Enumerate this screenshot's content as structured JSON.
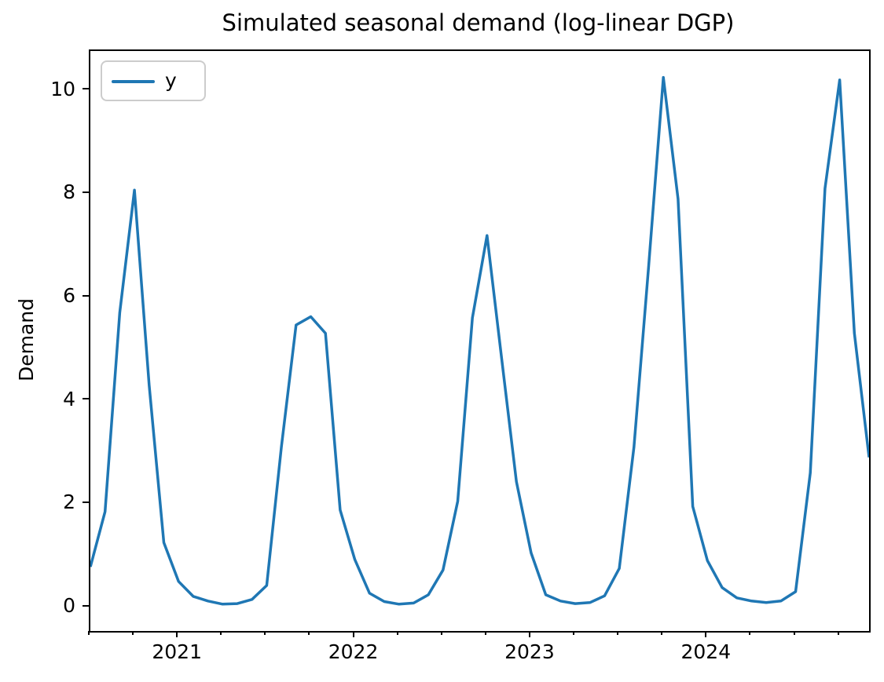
{
  "figure": {
    "title": "Simulated seasonal demand (log-linear DGP)",
    "y_axis": {
      "label": "Demand",
      "tick_labels": [
        "0",
        "2",
        "4",
        "6",
        "8",
        "10"
      ]
    },
    "x_axis": {
      "tick_labels": [
        "2021",
        "2022",
        "2023",
        "2024"
      ]
    },
    "legend": {
      "entries": [
        {
          "label": "y",
          "color": "#1f77b4"
        }
      ]
    }
  },
  "colors": {
    "line": "#1f77b4",
    "spines": "#000000",
    "background": "#ffffff",
    "legend_border": "#cccccc",
    "text": "#000000"
  },
  "chart_data": {
    "type": "line",
    "title": "Simulated seasonal demand (log-linear DGP)",
    "xlabel": "",
    "ylabel": "Demand",
    "grid": false,
    "legend_position": "upper-left",
    "ylim": [
      -0.46,
      10.76
    ],
    "yticks": [
      0,
      2,
      4,
      6,
      8,
      10
    ],
    "xtick_major_labels": [
      "2021",
      "2022",
      "2023",
      "2024"
    ],
    "x": [
      "2020-07",
      "2020-08",
      "2020-09",
      "2020-10",
      "2020-11",
      "2020-12",
      "2021-01",
      "2021-02",
      "2021-03",
      "2021-04",
      "2021-05",
      "2021-06",
      "2021-07",
      "2021-08",
      "2021-09",
      "2021-10",
      "2021-11",
      "2021-12",
      "2022-01",
      "2022-02",
      "2022-03",
      "2022-04",
      "2022-05",
      "2022-06",
      "2022-07",
      "2022-08",
      "2022-09",
      "2022-10",
      "2022-11",
      "2022-12",
      "2023-01",
      "2023-02",
      "2023-03",
      "2023-04",
      "2023-05",
      "2023-06",
      "2023-07",
      "2023-08",
      "2023-09",
      "2023-10",
      "2023-11",
      "2023-12",
      "2024-01",
      "2024-02",
      "2024-03",
      "2024-04",
      "2024-05",
      "2024-06",
      "2024-07",
      "2024-08",
      "2024-09",
      "2024-10",
      "2024-11",
      "2024-12"
    ],
    "series": [
      {
        "name": "y",
        "color": "#1f77b4",
        "values": [
          0.78,
          1.85,
          5.7,
          8.07,
          4.3,
          1.25,
          0.5,
          0.21,
          0.12,
          0.06,
          0.07,
          0.15,
          0.42,
          3.1,
          5.46,
          5.62,
          5.3,
          1.88,
          0.92,
          0.27,
          0.11,
          0.06,
          0.08,
          0.24,
          0.72,
          2.05,
          5.6,
          7.19,
          4.8,
          2.43,
          1.05,
          0.24,
          0.12,
          0.07,
          0.09,
          0.22,
          0.75,
          3.1,
          6.6,
          10.25,
          7.9,
          1.95,
          0.9,
          0.38,
          0.18,
          0.12,
          0.09,
          0.12,
          0.3,
          2.6,
          8.1,
          10.2,
          5.3,
          2.9
        ]
      }
    ]
  }
}
